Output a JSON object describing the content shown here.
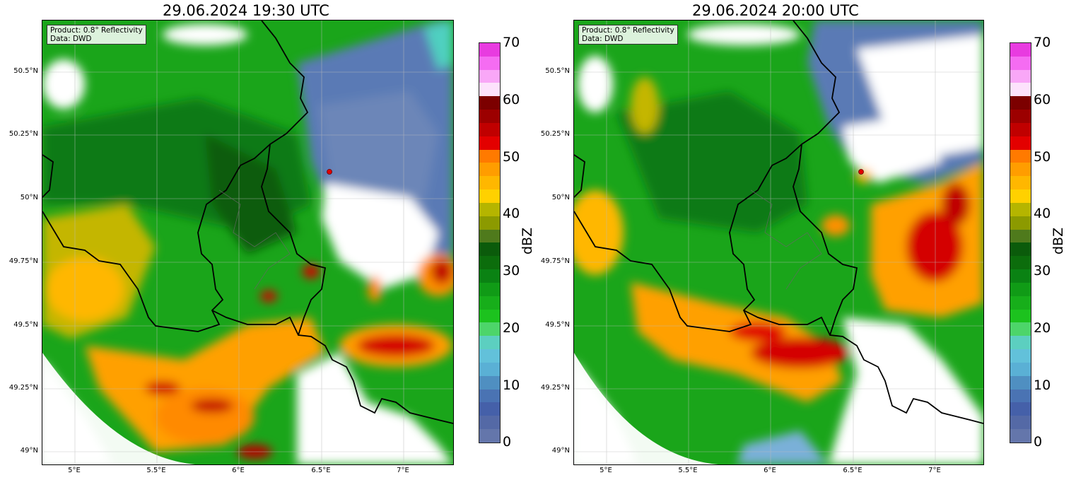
{
  "panels": [
    {
      "title": "29.06.2024 19:30 UTC",
      "product_label": "Product: 0.8° Reflectivity",
      "data_label": "Data: DWD"
    },
    {
      "title": "29.06.2024 20:00 UTC",
      "product_label": "Product: 0.8° Reflectivity",
      "data_label": "Data: DWD"
    }
  ],
  "lat_labels": [
    "50.5°N",
    "50.25°N",
    "50°N",
    "49.75°N",
    "49.5°N",
    "49.25°N",
    "49°N"
  ],
  "lon_labels": [
    "5°E",
    "5.5°E",
    "6°E",
    "6.5°E",
    "7°E"
  ],
  "colorbar": {
    "label": "dBZ",
    "ticks": [
      "70",
      "60",
      "50",
      "40",
      "30",
      "20",
      "10",
      "0"
    ],
    "colors_top_to_bottom": [
      "#e83be0",
      "#f56cf2",
      "#f9a7f7",
      "#fde2fc",
      "#7c0000",
      "#9c0000",
      "#c00000",
      "#e30000",
      "#ff7a00",
      "#ff9d00",
      "#ffb700",
      "#ffd100",
      "#b5b500",
      "#8c9a00",
      "#4f7a1c",
      "#0b5b0b",
      "#0c6d0c",
      "#0a8213",
      "#109b16",
      "#17ae1a",
      "#1cc21e",
      "#4dd56a",
      "#5ccfc0",
      "#62c1da",
      "#5ab0d5",
      "#4f8fc1",
      "#4a73b3",
      "#4560a9",
      "#5469a6",
      "#6476ab"
    ]
  },
  "radar_site_color": "#e00000"
}
